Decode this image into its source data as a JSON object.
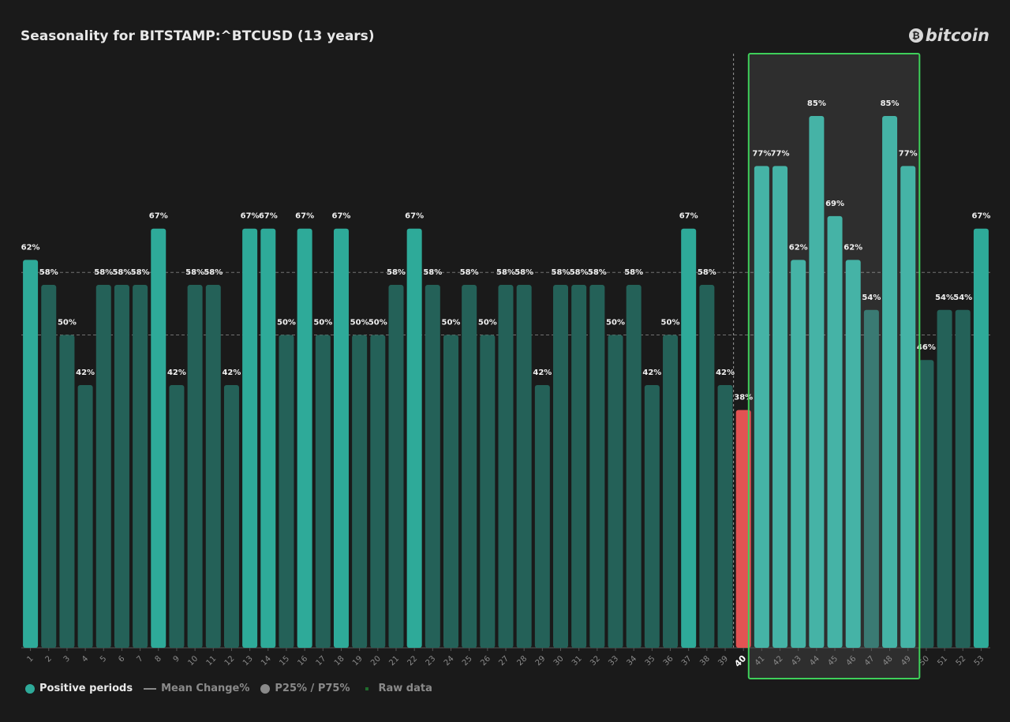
{
  "chart_data": {
    "type": "bar",
    "title": "Seasonality for BITSTAMP:^BTCUSD (13 years)",
    "categories": [
      "1",
      "2",
      "3",
      "4",
      "5",
      "6",
      "7",
      "8",
      "9",
      "10",
      "11",
      "12",
      "13",
      "14",
      "15",
      "16",
      "17",
      "18",
      "19",
      "20",
      "21",
      "22",
      "23",
      "24",
      "25",
      "26",
      "27",
      "28",
      "29",
      "30",
      "31",
      "32",
      "33",
      "34",
      "35",
      "36",
      "37",
      "38",
      "39",
      "40",
      "41",
      "42",
      "43",
      "44",
      "45",
      "46",
      "47",
      "48",
      "49",
      "50",
      "51",
      "52",
      "53"
    ],
    "values": [
      62,
      58,
      50,
      42,
      58,
      58,
      58,
      67,
      42,
      58,
      58,
      42,
      67,
      67,
      50,
      67,
      50,
      67,
      50,
      50,
      58,
      67,
      58,
      50,
      58,
      50,
      58,
      58,
      42,
      58,
      58,
      58,
      50,
      58,
      42,
      50,
      67,
      58,
      42,
      38,
      77,
      77,
      62,
      85,
      69,
      62,
      54,
      85,
      77,
      46,
      54,
      54,
      67
    ],
    "value_suffix": "%",
    "ylim": [
      0,
      100
    ],
    "reference_lines": [
      50,
      60
    ],
    "current_period": "40",
    "highlight_range": [
      "41",
      "49"
    ],
    "colors": {
      "background": "#1a1a1a",
      "positive_high": "#2eaa99",
      "positive_mid": "#246158",
      "negative": "#e35353",
      "highlight_fill": "#45b3a6",
      "highlight_mid": "#3a7a73",
      "highlight_box_border": "#3ecf5a",
      "highlight_box_fill": "#2e2e2e"
    }
  },
  "header": {
    "title": "Seasonality for BITSTAMP:^BTCUSD (13 years)",
    "logo_text": "bitcoin",
    "logo_icon": "bitcoin-icon"
  },
  "legend": {
    "items": [
      {
        "label": "Positive periods",
        "color": "#2eaa99",
        "active": true,
        "icon": "dot"
      },
      {
        "label": "Mean Change%",
        "color": "#8a8a8a",
        "active": false,
        "icon": "line"
      },
      {
        "label": "P25% / P75%",
        "color": "#8a8a8a",
        "active": false,
        "icon": "dot"
      },
      {
        "label": "Raw data",
        "color": "#1f6b2c",
        "active": false,
        "icon": "square"
      }
    ]
  }
}
